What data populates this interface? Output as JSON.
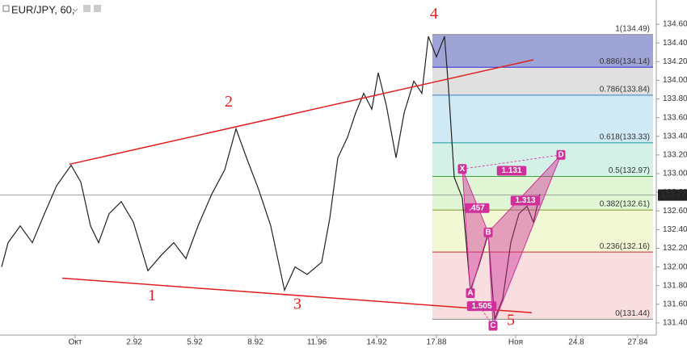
{
  "chart_data": {
    "type": "line",
    "title": "EUR/JPY, 60,",
    "xlim": [
      -3.72,
      28.76
    ],
    "ylim": [
      131.27,
      134.86
    ],
    "xticks": [
      {
        "value": 0,
        "label": "Окт"
      },
      2.92,
      5.92,
      8.92,
      11.96,
      14.92,
      17.88,
      {
        "value": 21.8,
        "label": "Ноя"
      },
      24.8,
      27.84
    ],
    "yticks": [
      {
        "value": 131.4,
        "label": "131.40"
      },
      {
        "value": 131.6,
        "label": "131.60"
      },
      {
        "value": 131.8,
        "label": "131.80"
      },
      {
        "value": 132,
        "label": "132.00"
      },
      {
        "value": 132.2,
        "label": "132.20"
      },
      {
        "value": 132.4,
        "label": "132.40"
      },
      {
        "value": 132.6,
        "label": "132.60"
      },
      {
        "value": 132.8,
        "label": "132.80"
      },
      {
        "value": 133,
        "label": "133.00"
      },
      {
        "value": 133.2,
        "label": "133.20"
      },
      {
        "value": 133.4,
        "label": "133.40"
      },
      {
        "value": 133.6,
        "label": "133.60"
      },
      {
        "value": 133.8,
        "label": "133.80"
      },
      {
        "value": 134,
        "label": "134.00"
      },
      {
        "value": 134.2,
        "label": "134.20"
      },
      {
        "value": 134.4,
        "label": "134.40"
      },
      {
        "value": 134.6,
        "label": "134.60"
      }
    ],
    "series": [
      {
        "name": "EUR/JPY",
        "color": "#222222",
        "x": [
          -3.64,
          -3.32,
          -2.72,
          -2.12,
          -1.52,
          -0.92,
          -0.2,
          0.28,
          0.76,
          1.16,
          1.68,
          2.28,
          2.88,
          3.6,
          4.28,
          4.88,
          5.48,
          6.08,
          6.76,
          7.4,
          7.96,
          8.48,
          9.08,
          9.68,
          10.36,
          10.88,
          11.48,
          12.2,
          12.6,
          13.0,
          13.48,
          13.88,
          14.28,
          14.68,
          15.0,
          15.4,
          15.88,
          16.28,
          16.76,
          17.16,
          17.48,
          17.88,
          18.28,
          18.48,
          18.76,
          19.16,
          19.56,
          19.96,
          20.44,
          20.76,
          21.16,
          21.56,
          21.96,
          22.36,
          22.68,
          23.0
        ],
        "values": [
          132.0,
          132.26,
          132.44,
          132.26,
          132.57,
          132.87,
          133.09,
          132.91,
          132.44,
          132.26,
          132.57,
          132.7,
          132.48,
          131.96,
          132.13,
          132.26,
          132.09,
          132.44,
          132.78,
          133.04,
          133.48,
          133.17,
          132.83,
          132.44,
          131.75,
          132.0,
          131.92,
          132.05,
          132.52,
          133.17,
          133.39,
          133.65,
          133.86,
          133.69,
          134.08,
          133.73,
          133.17,
          133.65,
          133.99,
          133.86,
          134.47,
          134.25,
          134.47,
          133.91,
          132.96,
          132.74,
          131.75,
          132.0,
          132.35,
          131.44,
          131.66,
          132.26,
          132.57,
          132.65,
          132.48,
          132.78
        ]
      }
    ],
    "current_price": 132.77,
    "fib_x": [
      17.68,
      28.6
    ],
    "fib_levels": [
      {
        "label": "1(134.49)",
        "value": 134.49,
        "color": "#888888",
        "band": "#7f86c9"
      },
      {
        "label": "0.886(134.14)",
        "value": 134.14,
        "color": "#2a2ad0",
        "band": "#d6d6d6"
      },
      {
        "label": "0.786(133.84)",
        "value": 133.84,
        "color": "#3a78c8",
        "band": "#bfe1f2"
      },
      {
        "label": "0.618(133.33)",
        "value": 133.33,
        "color": "#16a09a",
        "band": "#c4ecdd"
      },
      {
        "label": "0.5(132.97)",
        "value": 132.97,
        "color": "#3aa53a",
        "band": "#d6f2c6"
      },
      {
        "label": "0.382(132.61)",
        "value": 132.61,
        "color": "#7a9a20",
        "band": "#eef5c4"
      },
      {
        "label": "0.236(132.16)",
        "value": 132.16,
        "color": "#d03030",
        "band": "#f6d3d3"
      },
      {
        "label": "0(131.44)",
        "value": 131.44,
        "color": "#888888"
      }
    ],
    "trendlines": [
      {
        "color": "#e02020",
        "x": [
          -0.28,
          22.68
        ],
        "y": [
          133.1,
          134.22
        ]
      },
      {
        "color": "#e02020",
        "x": [
          -0.64,
          22.6
        ],
        "y": [
          131.88,
          131.51
        ]
      }
    ],
    "waves": [
      {
        "text": "1",
        "x": 3.8,
        "y": 131.68
      },
      {
        "text": "2",
        "x": 7.6,
        "y": 133.76
      },
      {
        "text": "3",
        "x": 11.0,
        "y": 131.59
      },
      {
        "text": "4",
        "x": 17.76,
        "y": 134.7
      },
      {
        "text": "5",
        "x": 21.56,
        "y": 131.42
      }
    ],
    "pattern_color": "#d0309a",
    "pattern_points": [
      {
        "text": "X",
        "x": 19.16,
        "y": 133.05
      },
      {
        "text": "A",
        "x": 19.56,
        "y": 131.72
      },
      {
        "text": "B",
        "x": 20.44,
        "y": 132.37
      },
      {
        "text": "C",
        "x": 20.68,
        "y": 131.37
      },
      {
        "text": "D",
        "x": 24.04,
        "y": 133.2
      }
    ],
    "pattern_ratios": [
      {
        "text": "1.131",
        "x": 21.6,
        "y": 133.03
      },
      {
        "text": ".457",
        "x": 19.88,
        "y": 132.63
      },
      {
        "text": "1.505",
        "x": 20.12,
        "y": 131.58
      },
      {
        "text": "1.313",
        "x": 22.28,
        "y": 132.71
      }
    ]
  }
}
